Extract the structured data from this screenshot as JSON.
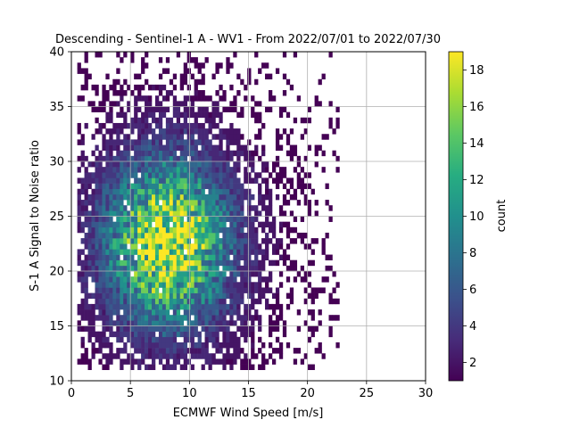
{
  "chart_data": {
    "type": "heatmap",
    "title": "Descending - Sentinel-1 A - WV1 - From 2022/07/01 to 2022/07/30",
    "xlabel": "ECMWF Wind Speed [m/s]",
    "ylabel": "S-1 A Signal to Noise ratio",
    "xlim": [
      0,
      30
    ],
    "ylim": [
      10,
      40
    ],
    "xticks": [
      "0",
      "5",
      "10",
      "15",
      "20",
      "25",
      "30"
    ],
    "yticks": [
      "10",
      "15",
      "20",
      "25",
      "30",
      "35",
      "40"
    ],
    "grid": true,
    "colormap": "viridis",
    "colorbar": {
      "label": "count",
      "range": [
        1,
        19
      ],
      "ticks": [
        "2",
        "4",
        "6",
        "8",
        "10",
        "12",
        "14",
        "16",
        "18"
      ]
    },
    "bin_size": {
      "x": 0.3,
      "y": 0.5
    },
    "distribution": {
      "x_range": [
        0.5,
        22.5
      ],
      "y_range": [
        11,
        40
      ],
      "peak": {
        "x": 8,
        "y": 22.5,
        "count": 19
      },
      "dense_core": {
        "x": [
          5,
          12
        ],
        "y": [
          18,
          32
        ]
      }
    }
  }
}
